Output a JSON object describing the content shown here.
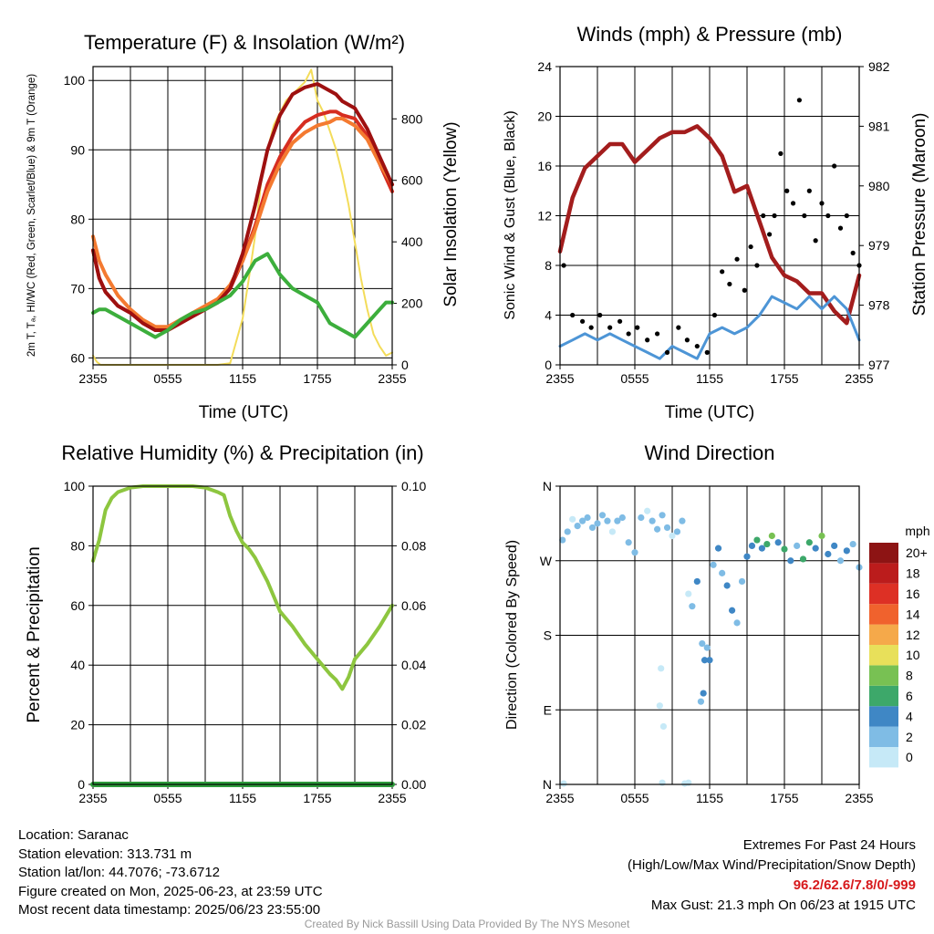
{
  "colors": {
    "temp_2m": "#d62d20",
    "dewpoint": "#3cae3c",
    "heat_index": "#9e1010",
    "temp_9m": "#f47a30",
    "insolation": "#f3dc5a",
    "sonic_wind": "#4d95d6",
    "gust": "#000000",
    "pressure": "#a31d1d",
    "rh": "#8dc63f",
    "precip": "#2e9b3c"
  },
  "info": {
    "location": "Location: Saranac",
    "elevation": "Station elevation: 313.731 m",
    "latlon": "Station lat/lon: 44.7076; -73.6712",
    "created": "Figure created on Mon, 2025-06-23, at 23:59 UTC",
    "recent": "Most recent data timestamp: 2025/06/23 23:55:00"
  },
  "extremes": {
    "title": "Extremes For Past 24 Hours",
    "subtitle": "(High/Low/Max Wind/Precipitation/Snow Depth)",
    "values": "96.2/62.6/7.8/0/-999",
    "max_gust": "Max Gust: 21.3 mph On 06/23 at 1915 UTC"
  },
  "credit": "Created By Nick Bassill Using Data Provided By The NYS Mesonet",
  "chart_data": [
    {
      "id": "temperature",
      "type": "line",
      "title": "Temperature (F) & Insolation (W/m²)",
      "xlabel": "Time (UTC)",
      "ylabel_left": "2m T, Tₐ, HI/WC (Red, Green, Scarlet/Blue) & 9m T (Orange)",
      "ylabel_right": "Solar Insolation (Yellow)",
      "xticks": [
        "2355",
        "0555",
        "1155",
        "1755",
        "2355"
      ],
      "xlim": [
        0,
        24
      ],
      "ylim_left": [
        59,
        102
      ],
      "ylim_right": [
        0,
        970
      ],
      "yticks_left": [
        60,
        70,
        80,
        90,
        100
      ],
      "yticks_right": [
        0,
        200,
        400,
        600,
        800
      ],
      "series": [
        {
          "key": "insolation",
          "axis": "right",
          "x": [
            0,
            0.3,
            0.6,
            1,
            2,
            3,
            4,
            5,
            6,
            7,
            8,
            9,
            10,
            11,
            12,
            12.5,
            13,
            13.5,
            14,
            14.5,
            15,
            15.5,
            16,
            16.5,
            17,
            17.5,
            18,
            18.5,
            19,
            19.5,
            20,
            20.5,
            21,
            21.5,
            22,
            22.5,
            23,
            23.5,
            24
          ],
          "y": [
            30,
            10,
            0,
            0,
            0,
            0,
            0,
            0,
            0,
            0,
            0,
            0,
            0,
            5,
            150,
            280,
            420,
            600,
            700,
            780,
            820,
            860,
            880,
            900,
            920,
            960,
            860,
            820,
            760,
            700,
            620,
            520,
            400,
            280,
            180,
            100,
            60,
            30,
            40
          ]
        },
        {
          "key": "temp_2m",
          "axis": "left",
          "x": [
            0,
            0.5,
            1,
            2,
            3,
            4,
            5,
            6,
            7,
            8,
            9,
            10,
            11,
            12,
            13,
            14,
            15,
            16,
            17,
            18,
            19,
            19.5,
            20,
            21,
            22,
            23,
            24
          ],
          "y": [
            75.5,
            71.5,
            69.5,
            67.5,
            66.5,
            65,
            64,
            64,
            65,
            66,
            67,
            68,
            70,
            74,
            79,
            85,
            89,
            92,
            94,
            95,
            95.5,
            95.5,
            95,
            94.5,
            92,
            88,
            84
          ]
        },
        {
          "key": "temp_9m",
          "axis": "left",
          "x": [
            0,
            0.5,
            1,
            2,
            3,
            4,
            5,
            6,
            7,
            8,
            9,
            10,
            11,
            12,
            13,
            14,
            15,
            16,
            17,
            18,
            19,
            19.5,
            20,
            21,
            22,
            23,
            24
          ],
          "y": [
            77.5,
            74,
            72,
            69,
            67,
            65.5,
            64.5,
            64.5,
            65.5,
            66.5,
            67.5,
            68.5,
            70.5,
            74,
            78.5,
            84,
            88,
            91,
            92.5,
            93.5,
            94,
            94.5,
            94.5,
            93.5,
            91.5,
            88,
            85
          ]
        },
        {
          "key": "heat_index",
          "axis": "left",
          "x": [
            0,
            0.5,
            1,
            2,
            3,
            4,
            5,
            6,
            7,
            8,
            9,
            10,
            11,
            12,
            13,
            14,
            15,
            16,
            17,
            18,
            19,
            19.5,
            20,
            21,
            22,
            23,
            24
          ],
          "y": [
            75.5,
            71.5,
            69.5,
            67.5,
            66.5,
            65,
            64,
            64,
            65,
            66,
            67,
            68,
            70,
            75,
            82,
            90,
            95,
            98,
            99,
            99.5,
            98.5,
            98,
            97,
            96,
            93,
            89,
            85
          ]
        },
        {
          "key": "dewpoint",
          "axis": "left",
          "x": [
            0,
            0.5,
            1,
            2,
            3,
            4,
            5,
            6,
            7,
            8,
            9,
            10,
            11,
            12,
            13,
            14,
            15,
            16,
            17,
            18,
            19,
            20,
            21,
            22,
            23,
            23.5,
            24
          ],
          "y": [
            66.5,
            67,
            67,
            66,
            65,
            64,
            63,
            64,
            65.5,
            66.5,
            67,
            68,
            69,
            71,
            74,
            75,
            72,
            70,
            69,
            68,
            65,
            64,
            63,
            65,
            67,
            68,
            68
          ]
        }
      ]
    },
    {
      "id": "winds",
      "type": "line",
      "title": "Winds (mph) & Pressure (mb)",
      "xlabel": "Time (UTC)",
      "ylabel_left": "Sonic Wind & Gust (Blue, Black)",
      "ylabel_right": "Station Pressure (Maroon)",
      "xticks": [
        "2355",
        "0555",
        "1155",
        "1755",
        "2355"
      ],
      "xlim": [
        0,
        24
      ],
      "ylim_left": [
        0,
        24
      ],
      "ylim_right": [
        977,
        982
      ],
      "yticks_left": [
        0,
        4,
        8,
        12,
        16,
        20,
        24
      ],
      "yticks_right": [
        977,
        978,
        979,
        980,
        981,
        982
      ],
      "series": [
        {
          "key": "pressure",
          "axis": "right",
          "x": [
            0,
            1,
            2,
            3,
            4,
            5,
            6,
            7,
            8,
            9,
            10,
            11,
            12,
            13,
            14,
            15,
            16,
            17,
            18,
            19,
            20,
            21,
            22,
            23,
            23.5,
            24
          ],
          "y": [
            978.9,
            979.8,
            980.3,
            980.5,
            980.7,
            980.7,
            980.4,
            980.6,
            980.8,
            980.9,
            980.9,
            981.0,
            980.8,
            980.5,
            979.9,
            980.0,
            979.4,
            978.8,
            978.5,
            978.4,
            978.2,
            978.2,
            977.9,
            977.7,
            978.1,
            978.5
          ]
        },
        {
          "key": "sonic_wind",
          "axis": "left",
          "x": [
            0,
            1,
            2,
            3,
            4,
            5,
            6,
            7,
            8,
            9,
            10,
            11,
            12,
            13,
            14,
            15,
            16,
            17,
            18,
            19,
            20,
            21,
            22,
            23,
            24
          ],
          "y": [
            1.5,
            2,
            2.5,
            2,
            2.5,
            2,
            1.5,
            1,
            0.5,
            1.5,
            1,
            0.5,
            2.5,
            3,
            2.5,
            3,
            4,
            5.5,
            5,
            4.5,
            5.5,
            4.5,
            5.5,
            4.5,
            2
          ]
        },
        {
          "key": "gust",
          "axis": "left",
          "type": "scatter",
          "x": [
            0.3,
            1,
            1.8,
            2.5,
            3.2,
            4,
            4.8,
            5.5,
            6.2,
            7,
            7.8,
            8.6,
            9.5,
            10.2,
            11,
            11.8,
            12.4,
            13,
            13.6,
            14.2,
            14.8,
            15.3,
            15.8,
            16.3,
            16.8,
            17.2,
            17.7,
            18.2,
            18.7,
            19.2,
            19.6,
            20,
            20.5,
            21,
            21.5,
            22,
            22.5,
            23,
            23.5,
            24
          ],
          "y": [
            8,
            4,
            3.5,
            3,
            4,
            3,
            3.5,
            2.5,
            3,
            2,
            2.5,
            1,
            3,
            2,
            1.5,
            1,
            4,
            7.5,
            6.5,
            8.5,
            6,
            9.5,
            8,
            12,
            10.5,
            12,
            17,
            14,
            13,
            21.3,
            12,
            14,
            10,
            13,
            12,
            16,
            11,
            12,
            9,
            8
          ]
        }
      ]
    },
    {
      "id": "humidity",
      "type": "line",
      "title": "Relative Humidity (%) & Precipitation (in)",
      "xlabel": "",
      "ylabel_left": "Percent & Precipitation",
      "xticks": [
        "2355",
        "0555",
        "1155",
        "1755",
        "2355"
      ],
      "xlim": [
        0,
        24
      ],
      "ylim_left": [
        0,
        100
      ],
      "ylim_right": [
        0,
        0.1
      ],
      "yticks_left": [
        0,
        20,
        40,
        60,
        80,
        100
      ],
      "yticks_right": [
        0,
        0.02,
        0.04,
        0.06,
        0.08,
        0.1
      ],
      "series": [
        {
          "key": "rh",
          "axis": "left",
          "x": [
            0,
            0.5,
            1,
            1.5,
            2,
            3,
            4,
            5,
            6,
            7,
            8,
            9,
            10,
            10.5,
            11,
            11.5,
            12,
            12.5,
            13,
            13.5,
            14,
            14.5,
            15,
            16,
            17,
            18,
            19,
            19.5,
            20,
            20.5,
            21,
            22,
            23,
            24
          ],
          "y": [
            75,
            82,
            92,
            96,
            98,
            99.5,
            100,
            100,
            100,
            100,
            100,
            99.5,
            98,
            97,
            90,
            85,
            81,
            79,
            76,
            72,
            68,
            63,
            58,
            53,
            47,
            42,
            37,
            35,
            32,
            36,
            42,
            47,
            53,
            60
          ]
        },
        {
          "key": "precip",
          "axis": "right",
          "x": [
            0,
            24
          ],
          "y": [
            0,
            0
          ]
        }
      ]
    },
    {
      "id": "wind_direction",
      "type": "scatter",
      "title": "Wind Direction",
      "xlabel": "",
      "ylabel_left": "Direction (Colored By Speed)",
      "xticks": [
        "2355",
        "0555",
        "1155",
        "1755",
        "2355"
      ],
      "xlim": [
        0,
        24
      ],
      "ylim_left": [
        0,
        360
      ],
      "ytick_labels": [
        "N",
        "E",
        "S",
        "W",
        "N"
      ],
      "yticks_left": [
        0,
        90,
        180,
        270,
        360
      ],
      "colorbar": {
        "title": "mph",
        "labels": [
          "0",
          "2",
          "4",
          "6",
          "8",
          "10",
          "12",
          "14",
          "16",
          "18",
          "20+"
        ],
        "colors": [
          "#c6e9f7",
          "#7fbce5",
          "#3f87c5",
          "#3da86a",
          "#78c153",
          "#e8e05a",
          "#f5a94a",
          "#f0622d",
          "#dd3025",
          "#bb1c1c",
          "#8d1414"
        ]
      },
      "points": [
        [
          0.2,
          295,
          1
        ],
        [
          0.6,
          305,
          1
        ],
        [
          1.0,
          320,
          0
        ],
        [
          1.4,
          312,
          1
        ],
        [
          1.8,
          318,
          1
        ],
        [
          2.2,
          322,
          1
        ],
        [
          2.6,
          310,
          1
        ],
        [
          3.0,
          315,
          1
        ],
        [
          3.4,
          325,
          1
        ],
        [
          3.8,
          318,
          1
        ],
        [
          4.2,
          305,
          0
        ],
        [
          4.6,
          318,
          1
        ],
        [
          5.0,
          322,
          1
        ],
        [
          5.5,
          292,
          1
        ],
        [
          6.0,
          280,
          1
        ],
        [
          6.5,
          322,
          1
        ],
        [
          7.0,
          330,
          0
        ],
        [
          7.4,
          318,
          1
        ],
        [
          7.8,
          308,
          1
        ],
        [
          8.2,
          325,
          1
        ],
        [
          8.6,
          310,
          1
        ],
        [
          9.0,
          300,
          0
        ],
        [
          9.4,
          305,
          1
        ],
        [
          9.8,
          318,
          1
        ],
        [
          10.3,
          230,
          0
        ],
        [
          10.6,
          215,
          1
        ],
        [
          11.0,
          245,
          2
        ],
        [
          11.4,
          170,
          1
        ],
        [
          11.8,
          165,
          1
        ],
        [
          12.0,
          150,
          2
        ],
        [
          12.3,
          265,
          1
        ],
        [
          12.7,
          285,
          2
        ],
        [
          13.0,
          255,
          1
        ],
        [
          13.4,
          240,
          2
        ],
        [
          13.8,
          210,
          2
        ],
        [
          14.2,
          195,
          1
        ],
        [
          14.6,
          245,
          1
        ],
        [
          15.0,
          275,
          2
        ],
        [
          15.4,
          288,
          2
        ],
        [
          15.8,
          295,
          3
        ],
        [
          16.2,
          285,
          2
        ],
        [
          16.6,
          290,
          3
        ],
        [
          17.0,
          300,
          4
        ],
        [
          17.5,
          292,
          2
        ],
        [
          18.0,
          284,
          3
        ],
        [
          18.5,
          270,
          2
        ],
        [
          19.0,
          288,
          1
        ],
        [
          19.5,
          272,
          3
        ],
        [
          20.0,
          292,
          3
        ],
        [
          20.5,
          285,
          2
        ],
        [
          21.0,
          300,
          4
        ],
        [
          21.5,
          278,
          2
        ],
        [
          22.0,
          288,
          2
        ],
        [
          22.5,
          270,
          1
        ],
        [
          23.0,
          282,
          2
        ],
        [
          23.5,
          290,
          1
        ],
        [
          24.0,
          262,
          1
        ],
        [
          0.3,
          1,
          0
        ],
        [
          8.2,
          2,
          0
        ],
        [
          8.3,
          70,
          0
        ],
        [
          8.0,
          95,
          0
        ],
        [
          8.1,
          140,
          0
        ],
        [
          10.0,
          1,
          0
        ],
        [
          10.3,
          2,
          0
        ],
        [
          11.3,
          100,
          1
        ],
        [
          11.5,
          110,
          2
        ],
        [
          11.6,
          150,
          2
        ]
      ]
    }
  ]
}
